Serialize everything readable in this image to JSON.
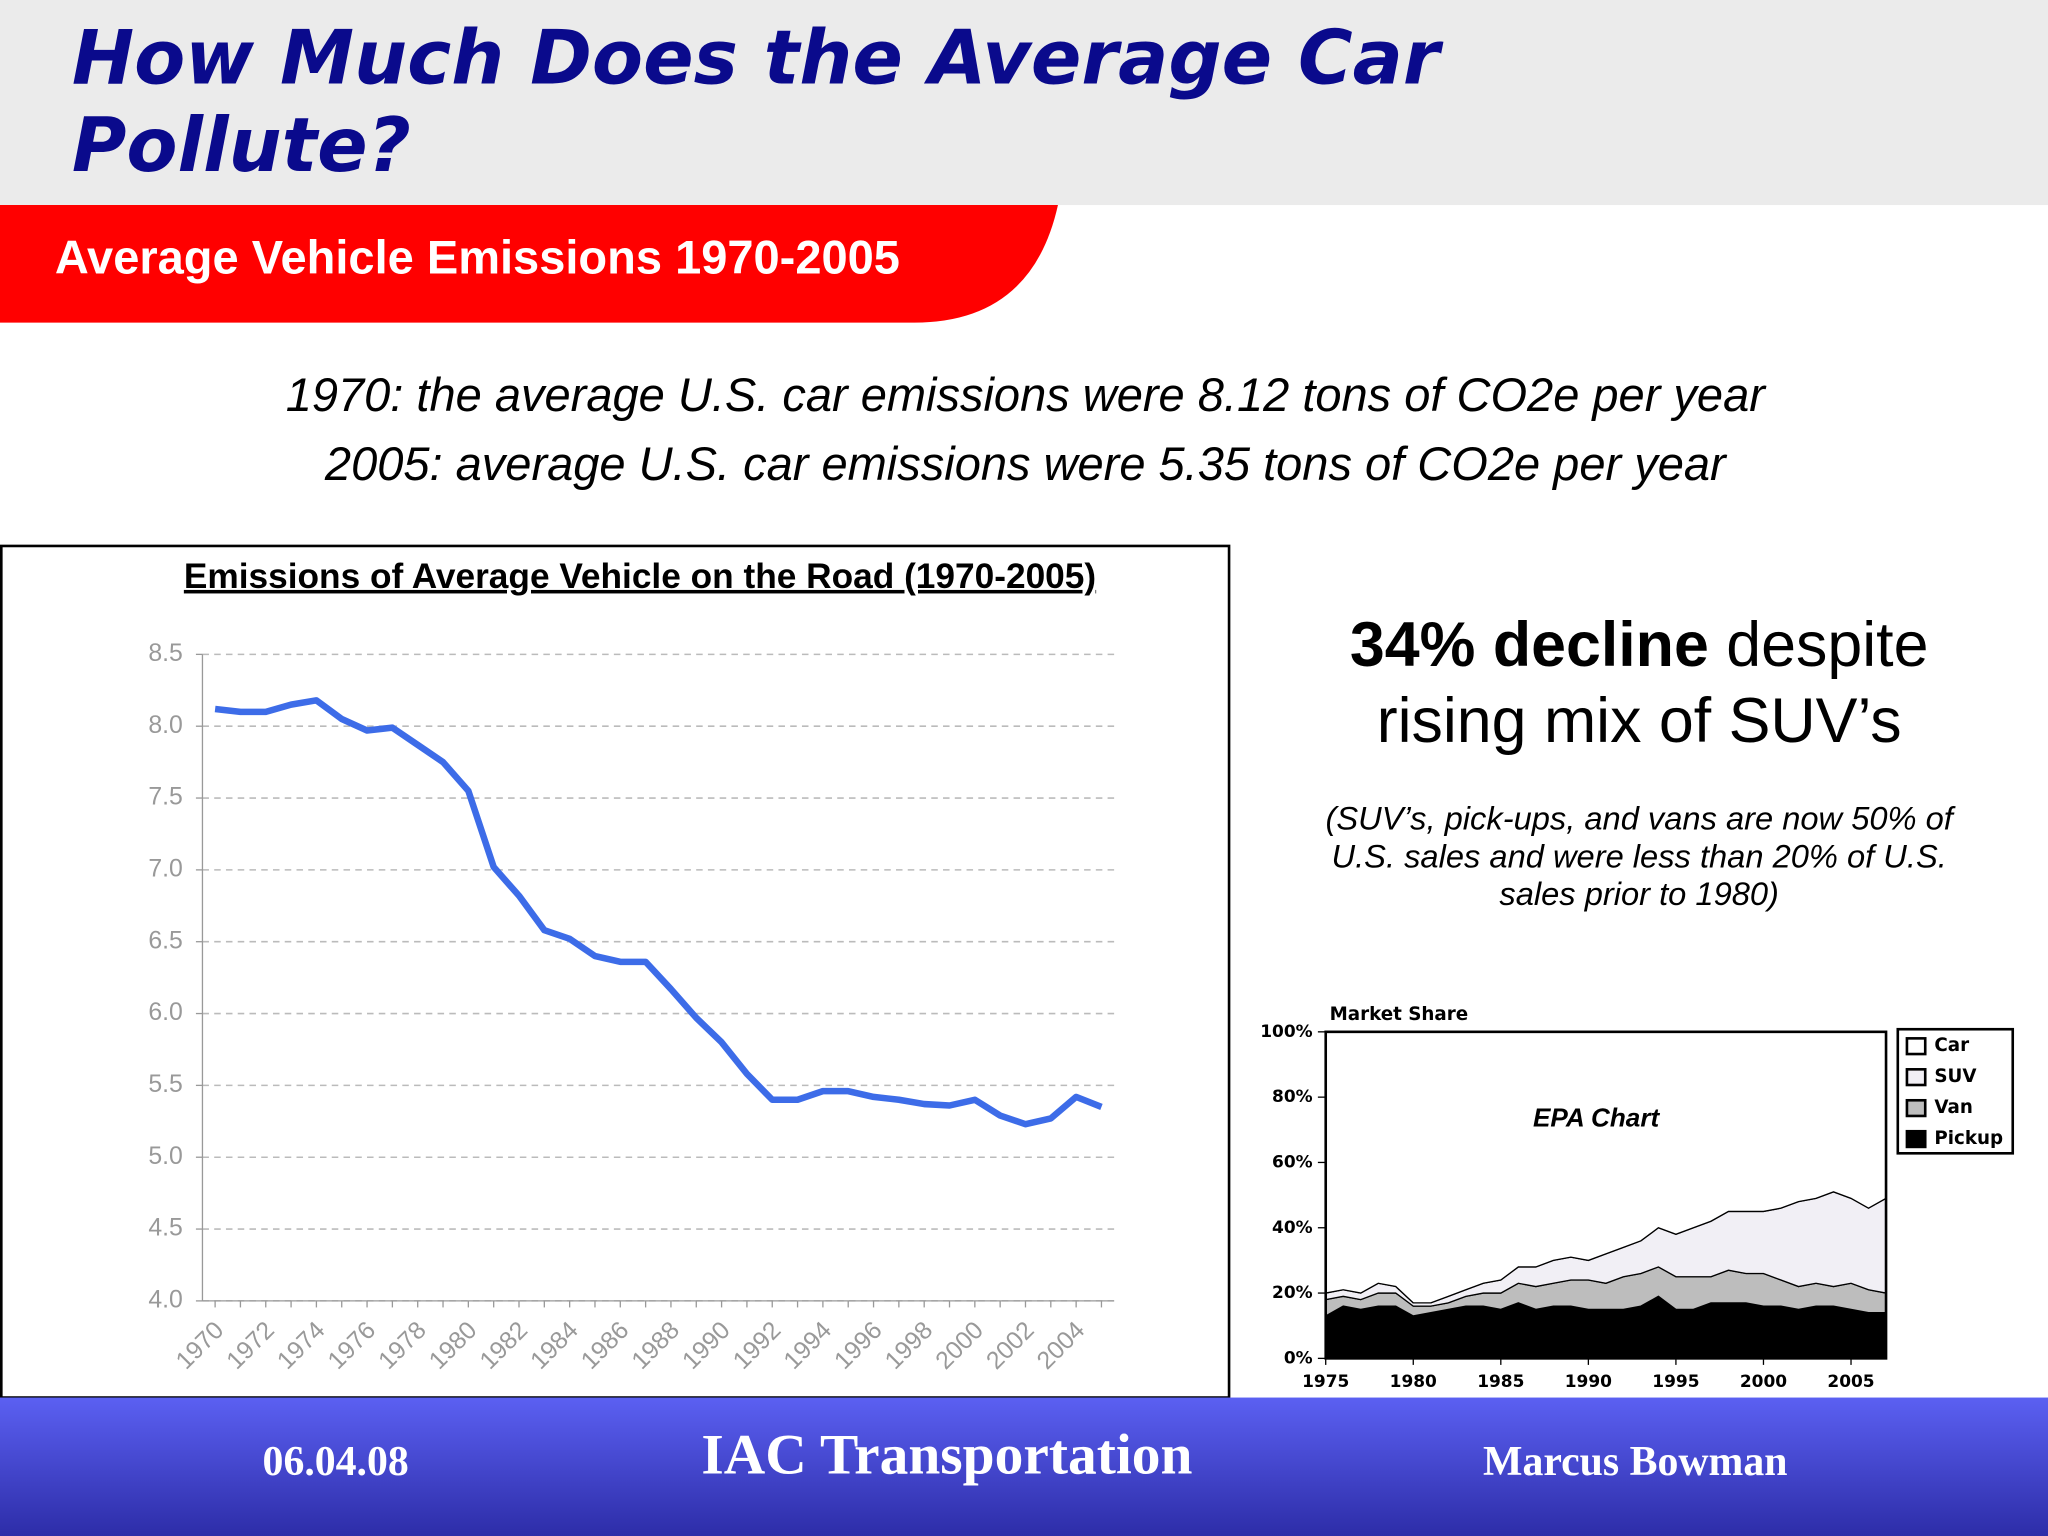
{
  "header": {
    "title": "How Much Does the Average Car Pollute?",
    "banner": "Average Vehicle Emissions 1970-2005"
  },
  "statements": [
    "1970: the average U.S. car emissions were 8.12 tons of CO2e per year",
    "2005: average U.S. car emissions were 5.35 tons of CO2e per year"
  ],
  "callout": {
    "bold": "34% decline",
    "rest": "despite rising mix of SUV’s",
    "note": "(SUV’s, pick-ups, and vans are now 50% of U.S. sales and were less than 20% of U.S. sales prior to 1980)"
  },
  "chart_data": [
    {
      "type": "line",
      "title": "Emissions of Average Vehicle on the Road (1970-2005)",
      "categories": [
        "1970",
        null,
        "1972",
        null,
        "1974",
        null,
        "1976",
        null,
        "1978",
        null,
        "1980",
        null,
        "1982",
        null,
        "1984",
        null,
        "1986",
        null,
        "1988",
        null,
        "1990",
        null,
        "1992",
        null,
        "1994",
        null,
        "1996",
        null,
        "1998",
        null,
        "2000",
        null,
        "2002",
        null,
        "2004",
        null
      ],
      "series": [
        {
          "name": "Emissions",
          "color": "#3d6ce8",
          "values": [
            8.12,
            8.1,
            8.1,
            8.15,
            8.18,
            8.05,
            7.97,
            7.99,
            7.87,
            7.75,
            7.55,
            7.02,
            6.82,
            6.58,
            6.52,
            6.4,
            6.36,
            6.36,
            6.17,
            5.97,
            5.8,
            5.58,
            5.4,
            5.4,
            5.46,
            5.46,
            5.42,
            5.4,
            5.37,
            5.36,
            5.4,
            5.29,
            5.23,
            5.27,
            5.42,
            5.35
          ]
        }
      ],
      "ylim": [
        4,
        8.5
      ],
      "yticks": [
        {
          "value": 4,
          "label": "4.0"
        },
        4.5,
        {
          "value": 5,
          "label": "5.0"
        },
        5.5,
        {
          "value": 6,
          "label": "6.0"
        },
        6.5,
        {
          "value": 7,
          "label": "7.0"
        },
        7.5,
        {
          "value": 8,
          "label": "8.0"
        },
        8.5
      ],
      "grid": true
    },
    {
      "type": "stacked_area",
      "title": "Market Share",
      "annotation": "EPA Chart",
      "x": [
        1975,
        1976,
        1977,
        1978,
        1979,
        1980,
        1981,
        1982,
        1983,
        1984,
        1985,
        1986,
        1987,
        1988,
        1989,
        1990,
        1991,
        1992,
        1993,
        1994,
        1995,
        1996,
        1997,
        1998,
        1999,
        2000,
        2001,
        2002,
        2003,
        2004,
        2005,
        2006,
        2007
      ],
      "series": [
        {
          "name": "Car",
          "color": "#ffffff",
          "values": [
            80,
            79,
            80,
            77,
            78,
            83,
            83,
            81,
            79,
            77,
            76,
            72,
            72,
            70,
            69,
            70,
            68,
            66,
            64,
            60,
            62,
            60,
            58,
            55,
            55,
            55,
            54,
            52,
            51,
            49,
            51,
            54,
            51
          ]
        },
        {
          "name": "SUV",
          "color": "#f1eff5",
          "values": [
            2,
            2,
            2,
            3,
            2,
            1,
            1,
            2,
            2,
            3,
            4,
            5,
            6,
            7,
            7,
            6,
            9,
            9,
            10,
            12,
            13,
            15,
            17,
            18,
            19,
            19,
            22,
            26,
            26,
            29,
            26,
            25,
            29
          ]
        },
        {
          "name": "Van",
          "color": "#bdbdbd",
          "values": [
            5,
            3,
            3,
            4,
            4,
            3,
            2,
            2,
            3,
            4,
            5,
            6,
            7,
            7,
            8,
            9,
            8,
            10,
            10,
            9,
            10,
            10,
            8,
            10,
            9,
            10,
            8,
            7,
            7,
            6,
            8,
            7,
            6
          ]
        },
        {
          "name": "Pickup",
          "color": "#000000",
          "values": [
            13,
            16,
            15,
            16,
            16,
            13,
            14,
            15,
            16,
            16,
            15,
            17,
            15,
            16,
            16,
            15,
            15,
            15,
            16,
            19,
            15,
            15,
            17,
            17,
            17,
            16,
            16,
            15,
            16,
            16,
            15,
            14,
            14
          ]
        }
      ],
      "xlim": [
        1975,
        2007
      ],
      "xticks": [
        1975,
        1980,
        1985,
        1990,
        1995,
        2000,
        2005
      ],
      "ylim": [
        0,
        100
      ],
      "yticks": [
        {
          "value": 0,
          "label": "0%"
        },
        {
          "value": 20,
          "label": "20%"
        },
        {
          "value": 40,
          "label": "40%"
        },
        {
          "value": 60,
          "label": "60%"
        },
        {
          "value": 80,
          "label": "80%"
        },
        {
          "value": 100,
          "label": "100%"
        }
      ],
      "legend": "right"
    }
  ],
  "footer": {
    "date": "06.04.08",
    "org": "IAC Transportation",
    "author": "Marcus Bowman"
  }
}
